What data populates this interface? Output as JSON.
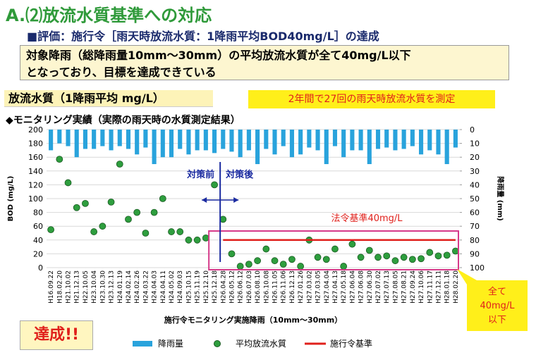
{
  "header": {
    "title": "A.⑵放流水質基準への対応",
    "subtitle": "■評価：施行令［雨天時放流水質：1降雨平均BOD40mg/L］の達成",
    "highlight": [
      "対象降雨（総降雨量10mm～30mm）の平均放流水質が全て40mg/L以下",
      "となっており、目標を達成できている"
    ],
    "section_label": "放流水質（1降雨平均 mg/L）",
    "note": "2年間で27回の雨天時放流水質を測定",
    "chart_heading": "◆モニタリング実績（実際の雨天時の水質測定結果）",
    "result": "達成!!"
  },
  "chart_data": {
    "type": "combo",
    "categories": [
      "H16.09.22",
      "H18.02.20",
      "H21.10.02",
      "H21.12.13",
      "H22.10.05",
      "H23.10.04",
      "H23.10.30",
      "H23.12.13",
      "H24.01.19",
      "H24.02.14",
      "H24.02.26",
      "H24.03.22",
      "H24.04.03",
      "H24.04.11",
      "H24.05.02",
      "H24.09.03",
      "H25.10.15",
      "H25.11.19",
      "H25.12.10",
      "H25.12.18",
      "H26.04.28",
      "H26.05.12",
      "H26.06.12",
      "H26.07.03",
      "H26.08.10",
      "H26.10.08",
      "H26.11.05",
      "H26.11.06",
      "H26.12.13",
      "H27.01.26",
      "H27.03.02",
      "H27.03.05",
      "H27.04.04",
      "H27.04.13",
      "H27.05.18",
      "H27.06.04",
      "H27.06.08",
      "H27.06.30",
      "H27.07.02",
      "H27.07.13",
      "H27.08.05",
      "H27.08.21",
      "H27.09.24",
      "H27.10.06",
      "H27.11.17",
      "H27.12.11",
      "H28.01.18",
      "H28.02.20"
    ],
    "series": [
      {
        "name": "降雨量",
        "color": "#29a3dc",
        "axis": "y2",
        "values": [
          15,
          10,
          12,
          20,
          14,
          14,
          12,
          15,
          12,
          14,
          18,
          13,
          25,
          20,
          20,
          14,
          18,
          15,
          15,
          17,
          14,
          16,
          20,
          15,
          25,
          14,
          18,
          12,
          20,
          18,
          13,
          15,
          25,
          12,
          20,
          15,
          15,
          25,
          14,
          13,
          15,
          14,
          12,
          18,
          15,
          18,
          25,
          13
        ]
      },
      {
        "name": "平均放流水質",
        "color": "#2e9e3e",
        "values": [
          55,
          157,
          123,
          87,
          93,
          52,
          60,
          95,
          150,
          70,
          80,
          50,
          80,
          100,
          52,
          52,
          40,
          40,
          43,
          120,
          70,
          20,
          2,
          5,
          10,
          27,
          10,
          5,
          12,
          2,
          40,
          15,
          12,
          27,
          2,
          34,
          15,
          25,
          15,
          17,
          10,
          15,
          12,
          13,
          22,
          17,
          18,
          24
        ]
      }
    ],
    "standard": {
      "name": "施行令基準",
      "color": "#e0201b",
      "value": 40
    },
    "ylim": [
      0,
      200
    ],
    "yticks": [
      0,
      20,
      40,
      60,
      80,
      100,
      120,
      140,
      160,
      180,
      200
    ],
    "y2lim": [
      0,
      100
    ],
    "y2ticks": [
      0,
      10,
      20,
      30,
      40,
      50,
      60,
      70,
      80,
      90,
      100
    ],
    "y2_inverted": true,
    "ylabel": "BOD (mg/L)",
    "y2label": "降雨量 (mm)",
    "xlabel": "施行令モニタリング実施降雨（10mm～30mm）",
    "annotations": {
      "before": "対策前",
      "after": "対策後",
      "standard_label": "法令基準40mg/L",
      "callout": [
        "全て",
        "40mg/L",
        "以下"
      ]
    }
  }
}
